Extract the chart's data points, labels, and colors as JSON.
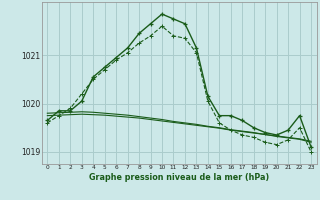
{
  "background_color": "#cce8e8",
  "grid_color": "#aacccc",
  "line_color": "#1a5c1a",
  "title": "Graphe pression niveau de la mer (hPa)",
  "xlim": [
    -0.5,
    23.5
  ],
  "ylim": [
    1018.75,
    1022.1
  ],
  "yticks": [
    1019,
    1020,
    1021
  ],
  "xticks": [
    0,
    1,
    2,
    3,
    4,
    5,
    6,
    7,
    8,
    9,
    10,
    11,
    12,
    13,
    14,
    15,
    16,
    17,
    18,
    19,
    20,
    21,
    22,
    23
  ],
  "series_main": [
    1019.65,
    1019.85,
    1019.85,
    1020.05,
    1020.55,
    1020.75,
    1020.95,
    1021.15,
    1021.45,
    1021.65,
    1021.85,
    1021.75,
    1021.65,
    1021.15,
    1020.15,
    1019.75,
    1019.75,
    1019.65,
    1019.5,
    1019.4,
    1019.35,
    1019.45,
    1019.75,
    1019.1
  ],
  "series_dotted": [
    1019.6,
    1019.75,
    1019.9,
    1020.2,
    1020.5,
    1020.7,
    1020.9,
    1021.05,
    1021.25,
    1021.4,
    1021.6,
    1021.4,
    1021.35,
    1021.05,
    1020.05,
    1019.6,
    1019.45,
    1019.35,
    1019.3,
    1019.2,
    1019.15,
    1019.25,
    1019.5,
    1019.0
  ],
  "series_flat1": [
    1019.75,
    1019.76,
    1019.77,
    1019.78,
    1019.77,
    1019.76,
    1019.74,
    1019.72,
    1019.7,
    1019.67,
    1019.64,
    1019.61,
    1019.58,
    1019.55,
    1019.52,
    1019.49,
    1019.45,
    1019.42,
    1019.39,
    1019.36,
    1019.32,
    1019.29,
    1019.26,
    1019.2
  ],
  "series_flat2": [
    1019.8,
    1019.81,
    1019.82,
    1019.83,
    1019.82,
    1019.8,
    1019.78,
    1019.76,
    1019.73,
    1019.7,
    1019.67,
    1019.63,
    1019.6,
    1019.57,
    1019.53,
    1019.5,
    1019.46,
    1019.43,
    1019.4,
    1019.36,
    1019.33,
    1019.3,
    1019.27,
    1019.22
  ]
}
